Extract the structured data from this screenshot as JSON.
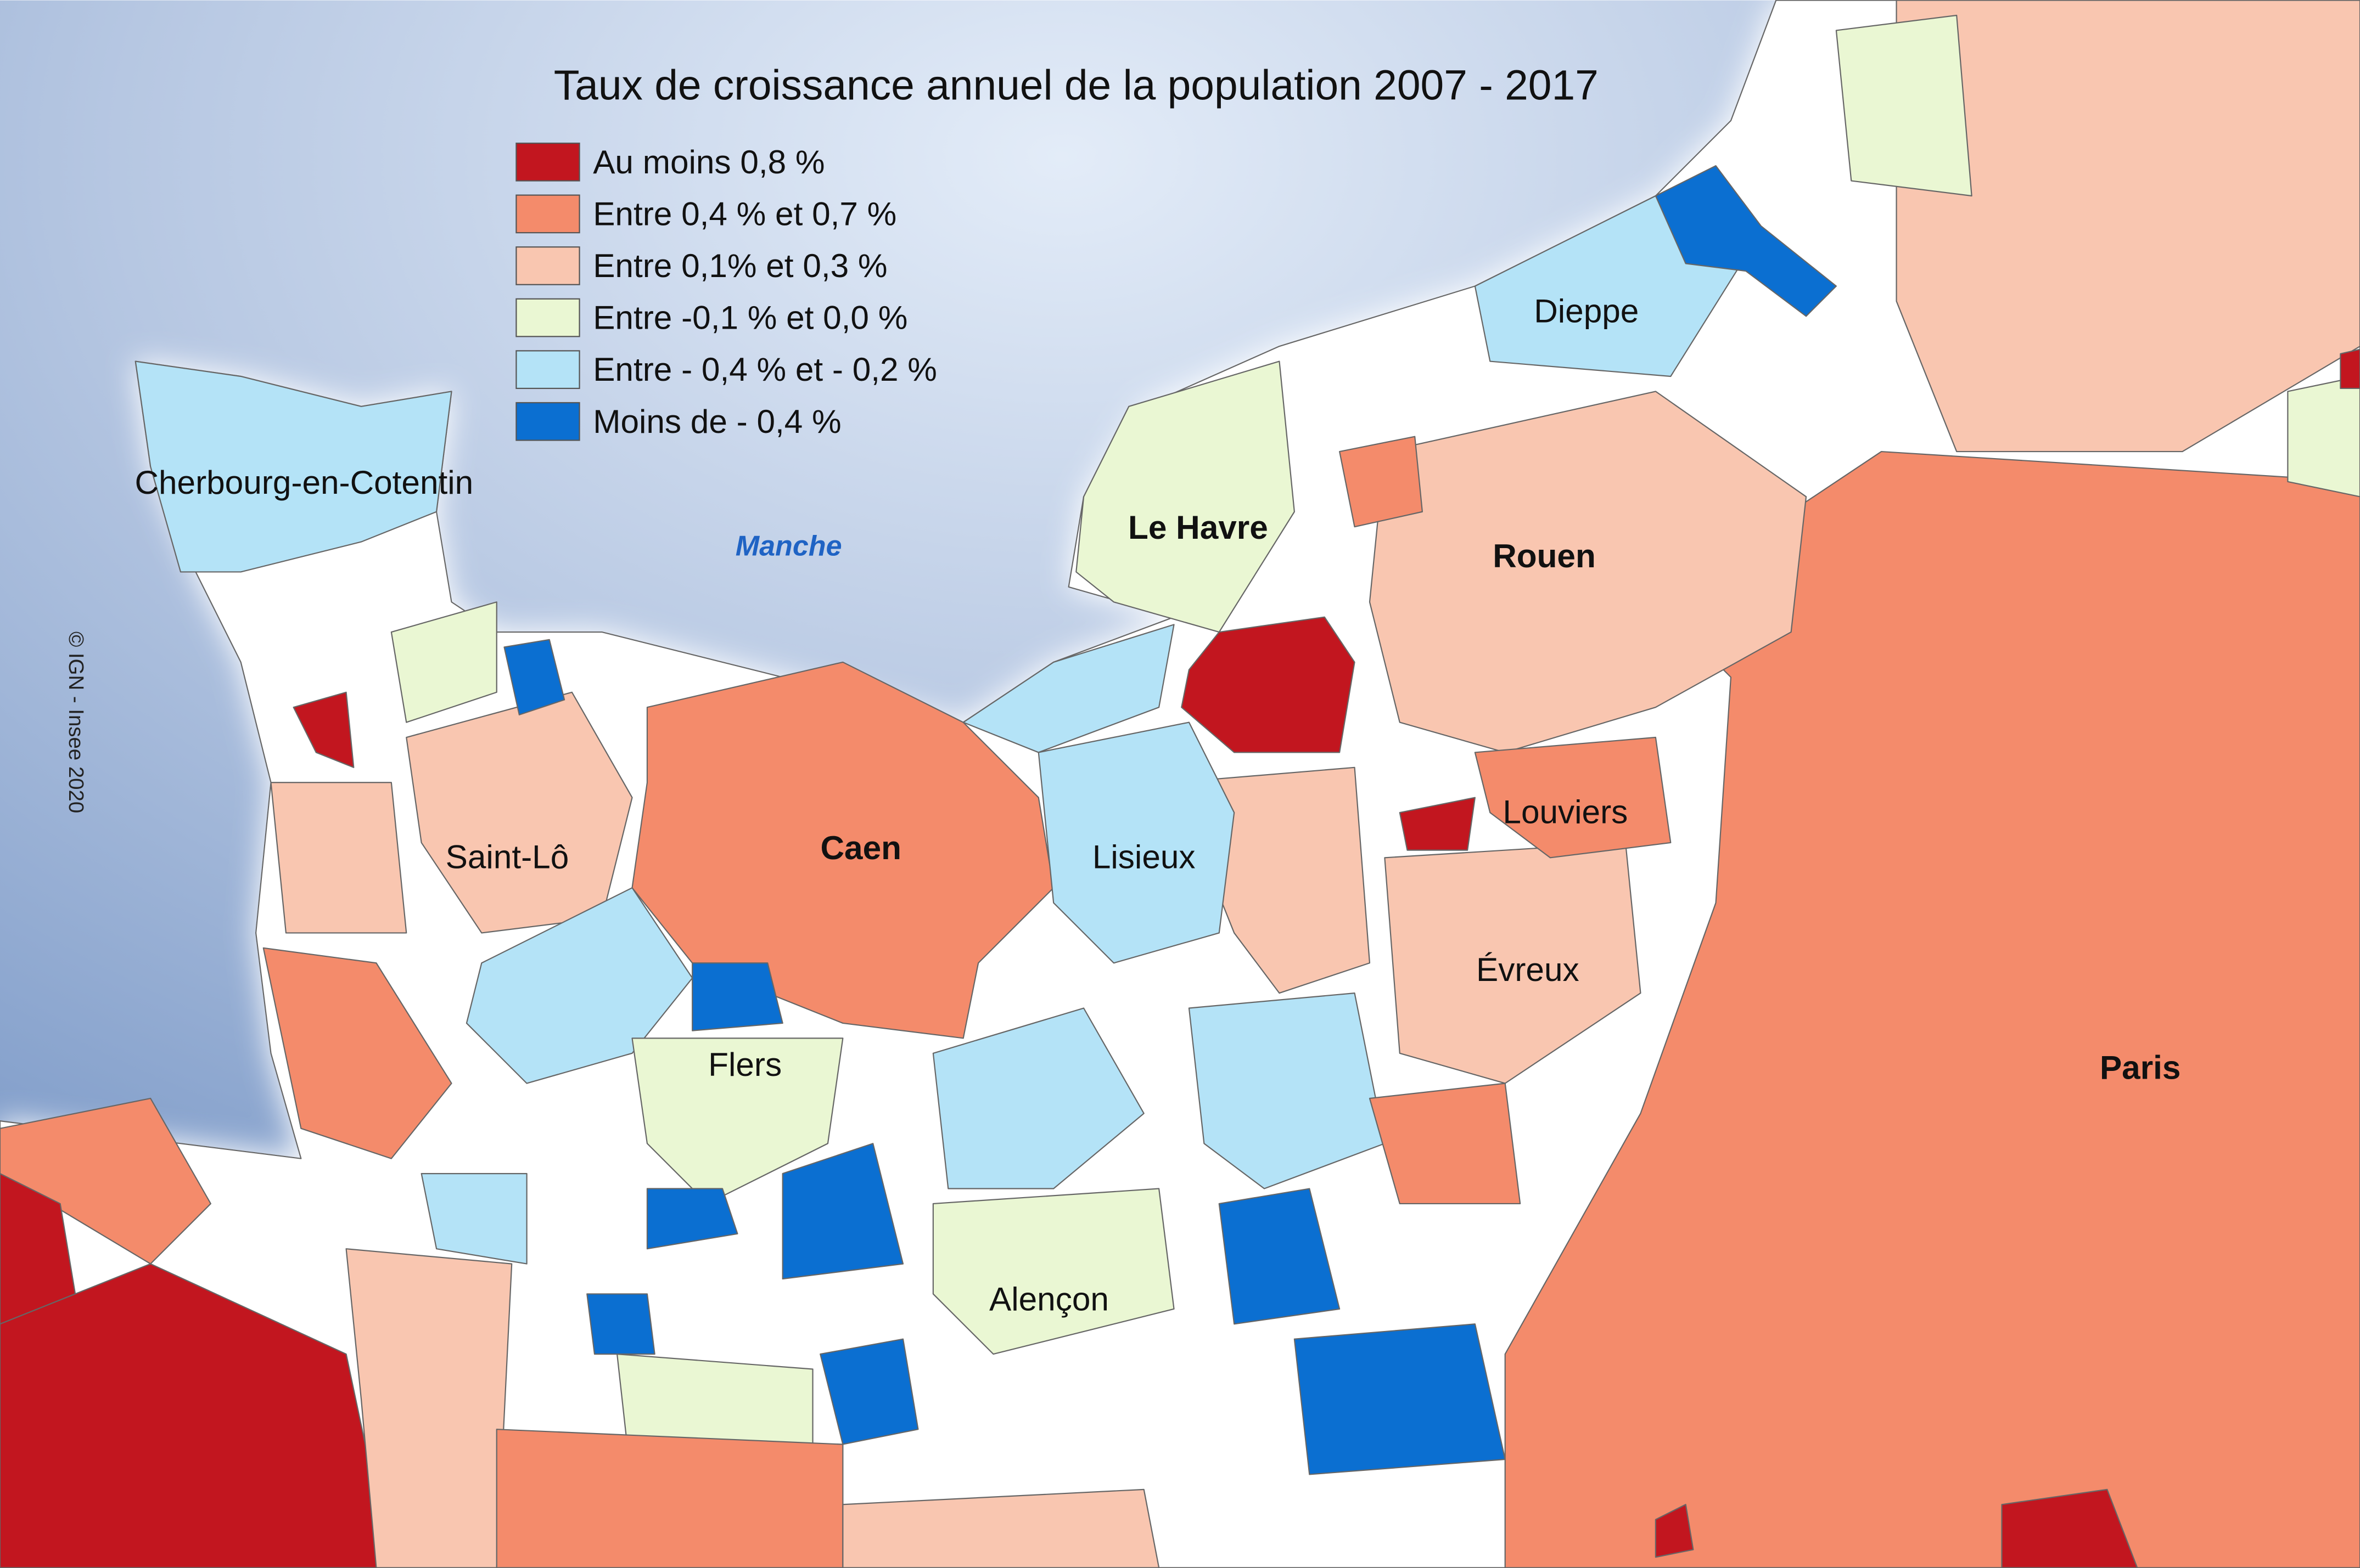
{
  "title": "Taux de croissance annuel de la population 2007 - 2017",
  "legend": {
    "items": [
      {
        "label": "Au moins 0,8 %",
        "color": "#c2161f"
      },
      {
        "label": "Entre 0,4 % et 0,7 %",
        "color": "#f48b6b"
      },
      {
        "label": "Entre 0,1% et 0,3 %",
        "color": "#f9c6b0"
      },
      {
        "label": "Entre -0,1 % et 0,0 %",
        "color": "#eaf7d3"
      },
      {
        "label": "Entre - 0,4 % et - 0,2 %",
        "color": "#b4e3f7"
      },
      {
        "label": "Moins de - 0,4 %",
        "color": "#0b6fd1"
      }
    ]
  },
  "places": [
    "Cherbourg-en-Cotentin",
    "Le Havre",
    "Dieppe",
    "Rouen",
    "Caen",
    "Saint-Lô",
    "Lisieux",
    "Louviers",
    "Évreux",
    "Flers",
    "Alençon",
    "Paris"
  ],
  "sea_label": "Manche",
  "credit": "© IGN - Insee 2020"
}
